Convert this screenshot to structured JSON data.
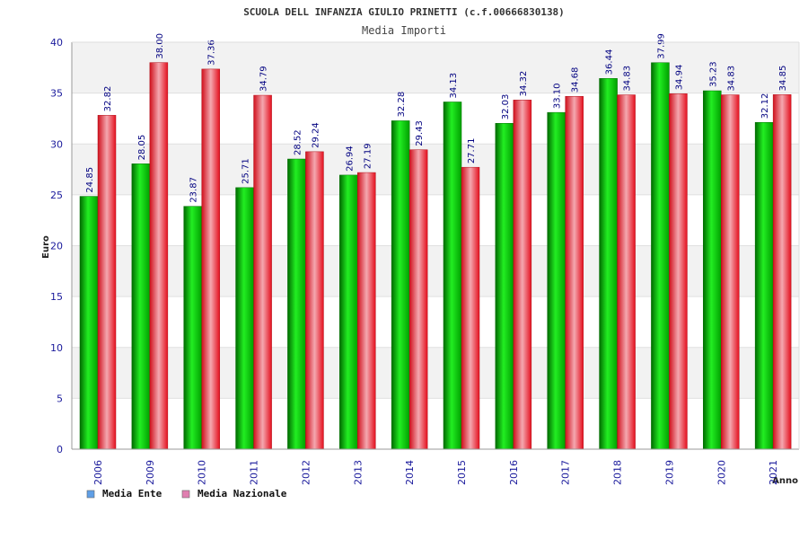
{
  "chart_data": {
    "type": "bar",
    "title": "SCUOLA DELL INFANZIA GIULIO PRINETTI (c.f.00666830138)",
    "subtitle": "Media Importi",
    "xlabel": "Anno",
    "ylabel": "Euro",
    "ylim": [
      0,
      40
    ],
    "yticks": [
      0,
      5,
      10,
      15,
      20,
      25,
      30,
      35,
      40
    ],
    "categories": [
      "2006",
      "2009",
      "2010",
      "2011",
      "2012",
      "2013",
      "2014",
      "2015",
      "2016",
      "2017",
      "2018",
      "2019",
      "2020",
      "2021"
    ],
    "series": [
      {
        "name": "Media Ente",
        "color": "#00c800",
        "legend_color": "#5f9fe6",
        "values": [
          24.85,
          28.05,
          23.87,
          25.71,
          28.52,
          26.94,
          32.28,
          34.13,
          32.03,
          33.1,
          36.44,
          37.99,
          35.23,
          32.12
        ],
        "labels": [
          "24.85",
          "28.05",
          "23.87",
          "25.71",
          "28.52",
          "26.94",
          "32.28",
          "34.13",
          "32.03",
          "33.10",
          "36.44",
          "37.99",
          "35.23",
          "32.12"
        ]
      },
      {
        "name": "Media Nazionale",
        "color": "#ee1c2c",
        "legend_color": "#e07fb0",
        "values": [
          32.82,
          38.0,
          37.36,
          34.79,
          29.24,
          27.19,
          29.43,
          27.71,
          34.32,
          34.68,
          34.83,
          34.94,
          34.83,
          34.85
        ],
        "labels": [
          "32.82",
          "38.00",
          "37.36",
          "34.79",
          "29.24",
          "27.19",
          "29.43",
          "27.71",
          "34.32",
          "34.68",
          "34.83",
          "34.94",
          "34.83",
          "34.85"
        ]
      }
    ],
    "legend_position": "bottom-left",
    "grid": true
  },
  "colors": {
    "tick_text": "#1a1a9c",
    "value_label": "#000080",
    "band": "#f2f2f2"
  }
}
